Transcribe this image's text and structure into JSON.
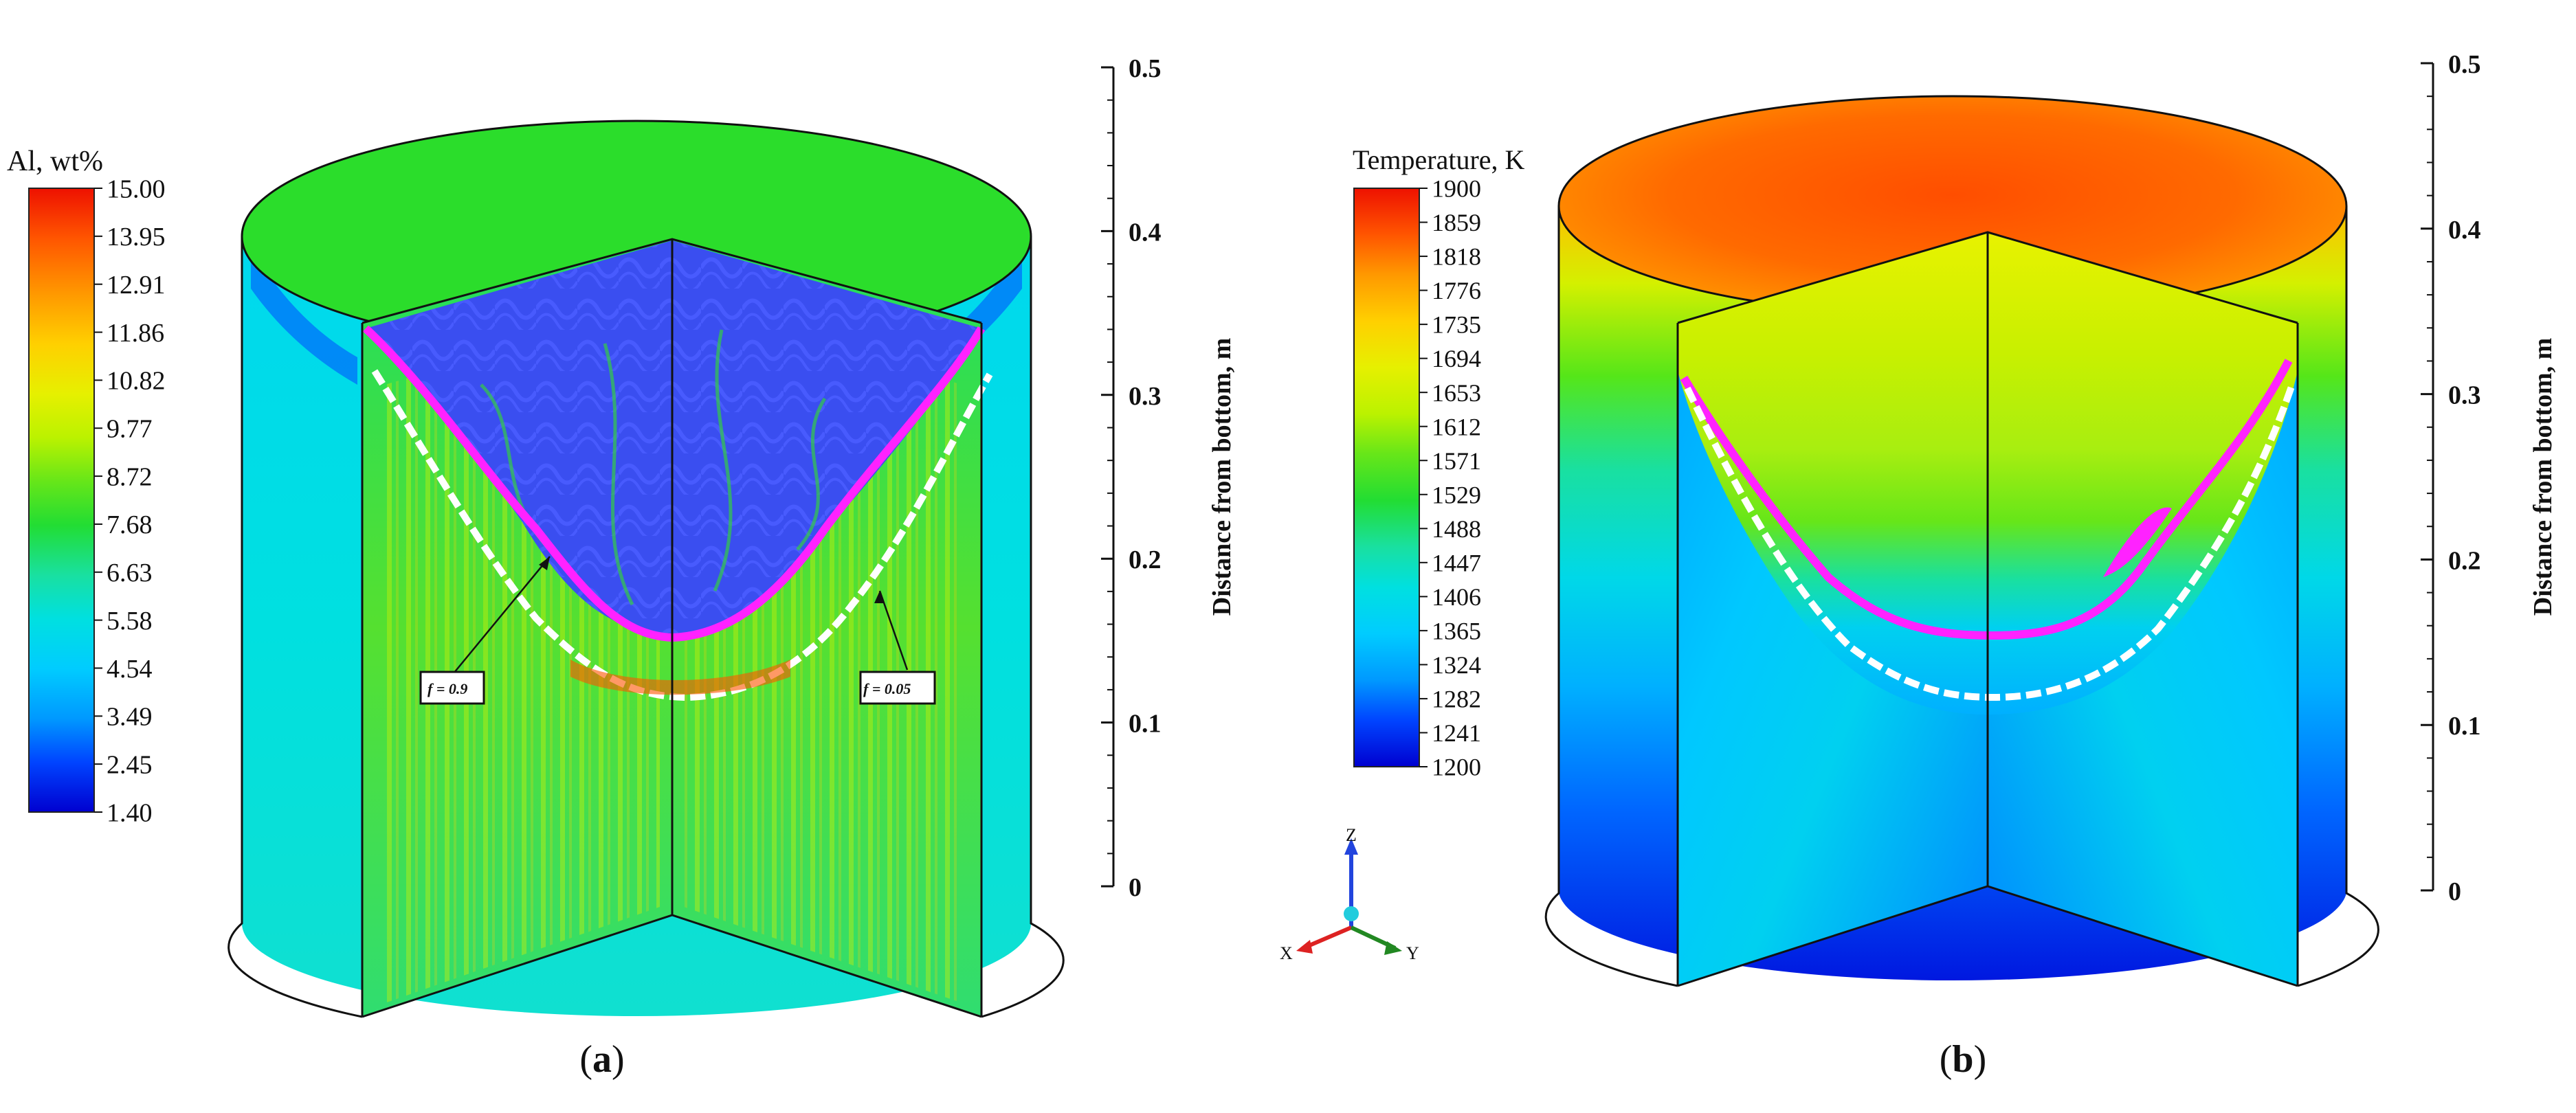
{
  "panel_a": {
    "caption_open": "(",
    "caption_letter": "a",
    "caption_close": ")",
    "colorbar": {
      "title": "Al, wt%",
      "ticks": [
        "15.00",
        "13.95",
        "12.91",
        "11.86",
        "10.82",
        "9.77",
        "8.72",
        "7.68",
        "6.63",
        "5.58",
        "4.54",
        "3.49",
        "2.45",
        "1.40"
      ],
      "max": 15.0,
      "min": 1.4
    },
    "annotations": {
      "fs_high": "f = 0.9",
      "fs_low": "f = 0.05"
    },
    "axis": {
      "label": "Distance from bottom, m",
      "ticks": [
        "0.5",
        "0.4",
        "0.3",
        "0.2",
        "0.1",
        "0"
      ]
    }
  },
  "panel_b": {
    "caption_open": "(",
    "caption_letter": "b",
    "caption_close": ")",
    "colorbar": {
      "title": "Temperature, K",
      "ticks": [
        "1900",
        "1859",
        "1818",
        "1776",
        "1735",
        "1694",
        "1653",
        "1612",
        "1571",
        "1529",
        "1488",
        "1447",
        "1406",
        "1365",
        "1324",
        "1282",
        "1241",
        "1200"
      ],
      "max": 1900,
      "min": 1200
    },
    "axis": {
      "label": "Distance from bottom, m",
      "ticks": [
        "0.5",
        "0.4",
        "0.3",
        "0.2",
        "0.1",
        "0"
      ]
    }
  },
  "triad": {
    "x": "X",
    "y": "Y",
    "z": "Z"
  },
  "colors": {
    "rainbow": [
      "#0000d0",
      "#0033ff",
      "#0099ff",
      "#00ccff",
      "#00e0e0",
      "#19e68c",
      "#33dd33",
      "#66e619",
      "#bbf200",
      "#e6f000",
      "#ffd000",
      "#ff9900",
      "#ff5500",
      "#ee1100"
    ],
    "liquidus_line": "#ff22ff",
    "solidus_line": "#ffffff",
    "streamlines": "#4a5cff"
  }
}
